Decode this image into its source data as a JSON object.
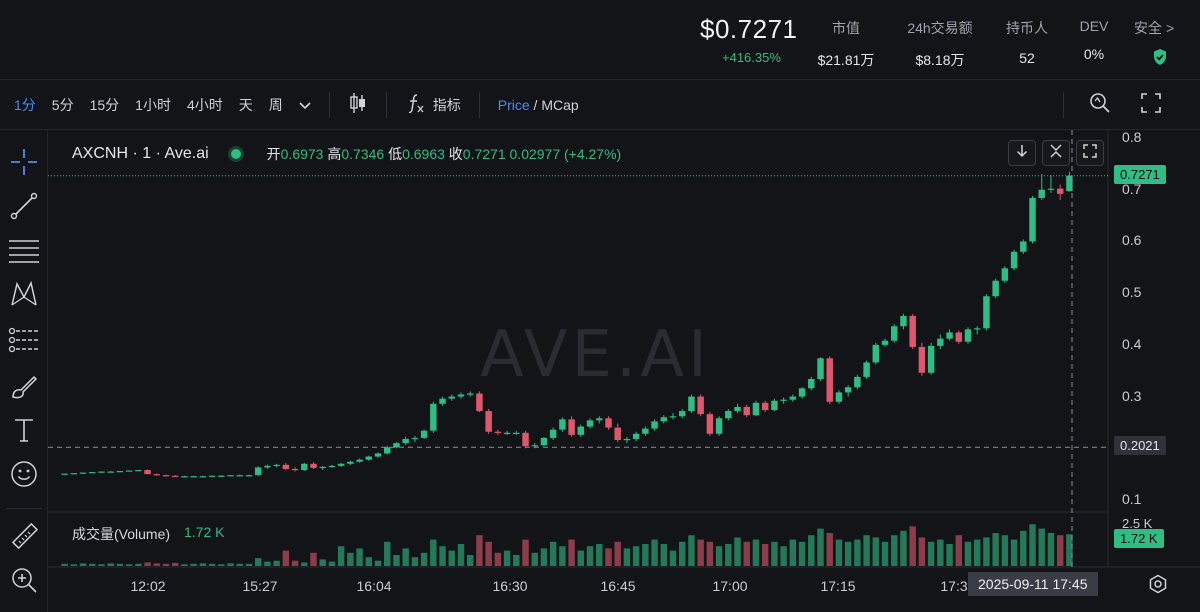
{
  "header": {
    "price": "$0.7271",
    "change": "+416.35%",
    "stats": [
      {
        "label": "市值",
        "value": "$21.81万"
      },
      {
        "label": "24h交易额",
        "value": "$8.18万"
      },
      {
        "label": "持币人",
        "value": "52"
      },
      {
        "label": "DEV",
        "value": "0%"
      }
    ],
    "safety_label": "安全",
    "safety_arrow": ">"
  },
  "toolbar": {
    "timeframes": [
      "1分",
      "5分",
      "15分",
      "1小时",
      "4小时",
      "天",
      "周"
    ],
    "indicator_label": "指标",
    "price_label": "Price",
    "mcap_label": "MCap",
    "price_mcap_sep": " / "
  },
  "legend": {
    "symbol": "AXCNH · 1 · Ave.ai",
    "open_label": "开",
    "open": "0.6973",
    "high_label": "高",
    "high": "0.7346",
    "low_label": "低",
    "low": "0.6963",
    "close_label": "收",
    "close": "0.7271",
    "change": "0.02977 (+4.27%)"
  },
  "volume_legend": {
    "label": "成交量(Volume)",
    "value": "1.72 K"
  },
  "watermark": "AVE.AI",
  "price_tags": {
    "last": "0.7271",
    "crosshair": "0.2021",
    "volume": "1.72 K",
    "vol_axis": "2.5 K"
  },
  "crosshair_time": "2025-09-11   17:45",
  "colors": {
    "up": "#2ebd85",
    "down": "#e0566c",
    "accent": "#4b8bf5",
    "bg": "#131417"
  },
  "chart_data": {
    "type": "candlestick",
    "x_ticks": [
      "12:02",
      "15:27",
      "16:04",
      "16:30",
      "16:45",
      "17:00",
      "17:15",
      "17:3"
    ],
    "y_ticks": [
      "0.8",
      "0.7",
      "0.6",
      "0.5",
      "0.4",
      "0.3",
      "0.1"
    ],
    "ylim": [
      0.1,
      0.8
    ],
    "candles": [
      [
        0.15,
        0.151,
        0.149,
        0.151
      ],
      [
        0.151,
        0.152,
        0.15,
        0.152
      ],
      [
        0.152,
        0.153,
        0.151,
        0.153
      ],
      [
        0.153,
        0.154,
        0.152,
        0.154
      ],
      [
        0.154,
        0.155,
        0.153,
        0.155
      ],
      [
        0.155,
        0.156,
        0.154,
        0.155
      ],
      [
        0.155,
        0.156,
        0.154,
        0.156
      ],
      [
        0.156,
        0.157,
        0.155,
        0.157
      ],
      [
        0.157,
        0.158,
        0.156,
        0.158
      ],
      [
        0.158,
        0.159,
        0.15,
        0.15
      ],
      [
        0.15,
        0.151,
        0.147,
        0.148
      ],
      [
        0.148,
        0.149,
        0.146,
        0.147
      ],
      [
        0.147,
        0.148,
        0.145,
        0.146
      ],
      [
        0.146,
        0.147,
        0.145,
        0.146
      ],
      [
        0.146,
        0.147,
        0.145,
        0.146
      ],
      [
        0.146,
        0.147,
        0.145,
        0.146
      ],
      [
        0.146,
        0.147,
        0.145,
        0.147
      ],
      [
        0.147,
        0.148,
        0.146,
        0.147
      ],
      [
        0.147,
        0.148,
        0.146,
        0.148
      ],
      [
        0.148,
        0.149,
        0.147,
        0.148
      ],
      [
        0.148,
        0.149,
        0.146,
        0.148
      ],
      [
        0.148,
        0.165,
        0.147,
        0.163
      ],
      [
        0.163,
        0.168,
        0.16,
        0.166
      ],
      [
        0.166,
        0.17,
        0.164,
        0.168
      ],
      [
        0.168,
        0.172,
        0.158,
        0.16
      ],
      [
        0.16,
        0.163,
        0.155,
        0.158
      ],
      [
        0.158,
        0.172,
        0.156,
        0.17
      ],
      [
        0.17,
        0.173,
        0.16,
        0.162
      ],
      [
        0.162,
        0.166,
        0.158,
        0.164
      ],
      [
        0.164,
        0.168,
        0.162,
        0.166
      ],
      [
        0.166,
        0.172,
        0.164,
        0.17
      ],
      [
        0.17,
        0.176,
        0.168,
        0.174
      ],
      [
        0.174,
        0.18,
        0.172,
        0.178
      ],
      [
        0.178,
        0.186,
        0.176,
        0.184
      ],
      [
        0.184,
        0.192,
        0.182,
        0.19
      ],
      [
        0.19,
        0.205,
        0.188,
        0.202
      ],
      [
        0.202,
        0.212,
        0.2,
        0.21
      ],
      [
        0.21,
        0.222,
        0.206,
        0.218
      ],
      [
        0.218,
        0.224,
        0.212,
        0.22
      ],
      [
        0.22,
        0.236,
        0.218,
        0.234
      ],
      [
        0.234,
        0.29,
        0.23,
        0.286
      ],
      [
        0.286,
        0.3,
        0.282,
        0.296
      ],
      [
        0.296,
        0.304,
        0.292,
        0.3
      ],
      [
        0.3,
        0.308,
        0.296,
        0.304
      ],
      [
        0.304,
        0.31,
        0.3,
        0.306
      ],
      [
        0.306,
        0.31,
        0.27,
        0.272
      ],
      [
        0.272,
        0.276,
        0.228,
        0.232
      ],
      [
        0.232,
        0.236,
        0.226,
        0.23
      ],
      [
        0.23,
        0.234,
        0.226,
        0.23
      ],
      [
        0.23,
        0.234,
        0.226,
        0.23
      ],
      [
        0.23,
        0.234,
        0.2,
        0.204
      ],
      [
        0.204,
        0.21,
        0.2,
        0.206
      ],
      [
        0.206,
        0.222,
        0.204,
        0.22
      ],
      [
        0.22,
        0.24,
        0.216,
        0.236
      ],
      [
        0.236,
        0.26,
        0.232,
        0.256
      ],
      [
        0.256,
        0.262,
        0.222,
        0.226
      ],
      [
        0.226,
        0.246,
        0.222,
        0.242
      ],
      [
        0.242,
        0.258,
        0.238,
        0.254
      ],
      [
        0.254,
        0.262,
        0.248,
        0.258
      ],
      [
        0.258,
        0.262,
        0.236,
        0.24
      ],
      [
        0.24,
        0.248,
        0.212,
        0.216
      ],
      [
        0.216,
        0.222,
        0.21,
        0.218
      ],
      [
        0.218,
        0.232,
        0.214,
        0.228
      ],
      [
        0.228,
        0.242,
        0.224,
        0.238
      ],
      [
        0.238,
        0.256,
        0.234,
        0.252
      ],
      [
        0.252,
        0.264,
        0.248,
        0.26
      ],
      [
        0.26,
        0.268,
        0.256,
        0.262
      ],
      [
        0.262,
        0.276,
        0.258,
        0.272
      ],
      [
        0.272,
        0.304,
        0.268,
        0.3
      ],
      [
        0.3,
        0.304,
        0.262,
        0.266
      ],
      [
        0.266,
        0.27,
        0.224,
        0.228
      ],
      [
        0.228,
        0.262,
        0.224,
        0.258
      ],
      [
        0.258,
        0.276,
        0.254,
        0.272
      ],
      [
        0.272,
        0.286,
        0.268,
        0.28
      ],
      [
        0.28,
        0.284,
        0.26,
        0.264
      ],
      [
        0.264,
        0.292,
        0.262,
        0.288
      ],
      [
        0.288,
        0.292,
        0.27,
        0.274
      ],
      [
        0.274,
        0.296,
        0.272,
        0.292
      ],
      [
        0.292,
        0.298,
        0.286,
        0.294
      ],
      [
        0.294,
        0.304,
        0.29,
        0.3
      ],
      [
        0.3,
        0.318,
        0.296,
        0.316
      ],
      [
        0.316,
        0.338,
        0.312,
        0.334
      ],
      [
        0.334,
        0.376,
        0.33,
        0.374
      ],
      [
        0.374,
        0.378,
        0.286,
        0.29
      ],
      [
        0.29,
        0.312,
        0.286,
        0.308
      ],
      [
        0.308,
        0.322,
        0.3,
        0.318
      ],
      [
        0.318,
        0.342,
        0.314,
        0.338
      ],
      [
        0.338,
        0.37,
        0.334,
        0.366
      ],
      [
        0.366,
        0.404,
        0.362,
        0.4
      ],
      [
        0.4,
        0.412,
        0.396,
        0.408
      ],
      [
        0.408,
        0.44,
        0.404,
        0.436
      ],
      [
        0.436,
        0.46,
        0.43,
        0.456
      ],
      [
        0.456,
        0.46,
        0.392,
        0.396
      ],
      [
        0.396,
        0.404,
        0.34,
        0.346
      ],
      [
        0.346,
        0.404,
        0.342,
        0.398
      ],
      [
        0.398,
        0.42,
        0.392,
        0.412
      ],
      [
        0.412,
        0.43,
        0.408,
        0.424
      ],
      [
        0.424,
        0.428,
        0.402,
        0.406
      ],
      [
        0.406,
        0.434,
        0.402,
        0.43
      ],
      [
        0.43,
        0.436,
        0.42,
        0.432
      ],
      [
        0.432,
        0.498,
        0.428,
        0.494
      ],
      [
        0.494,
        0.528,
        0.49,
        0.524
      ],
      [
        0.524,
        0.552,
        0.52,
        0.548
      ],
      [
        0.548,
        0.584,
        0.544,
        0.58
      ],
      [
        0.58,
        0.604,
        0.576,
        0.6
      ],
      [
        0.6,
        0.688,
        0.596,
        0.684
      ],
      [
        0.684,
        0.73,
        0.68,
        0.7
      ],
      [
        0.7,
        0.728,
        0.694,
        0.702
      ],
      [
        0.702,
        0.71,
        0.68,
        0.692
      ],
      [
        0.6973,
        0.7346,
        0.6963,
        0.7271
      ]
    ],
    "volumes": [
      0.05,
      0.04,
      0.06,
      0.05,
      0.04,
      0.06,
      0.05,
      0.04,
      0.05,
      0.08,
      0.06,
      0.05,
      0.07,
      0.04,
      0.05,
      0.06,
      0.05,
      0.04,
      0.06,
      0.05,
      0.05,
      0.18,
      0.1,
      0.12,
      0.35,
      0.12,
      0.08,
      0.3,
      0.15,
      0.1,
      0.45,
      0.3,
      0.4,
      0.2,
      0.12,
      0.55,
      0.25,
      0.4,
      0.2,
      0.3,
      0.6,
      0.45,
      0.35,
      0.5,
      0.25,
      0.7,
      0.55,
      0.3,
      0.35,
      0.25,
      0.6,
      0.3,
      0.4,
      0.55,
      0.45,
      0.6,
      0.35,
      0.45,
      0.5,
      0.4,
      0.55,
      0.4,
      0.45,
      0.5,
      0.6,
      0.5,
      0.35,
      0.55,
      0.7,
      0.6,
      0.55,
      0.45,
      0.5,
      0.65,
      0.55,
      0.6,
      0.5,
      0.55,
      0.45,
      0.6,
      0.55,
      0.7,
      0.85,
      0.75,
      0.6,
      0.55,
      0.6,
      0.7,
      0.65,
      0.55,
      0.7,
      0.8,
      0.9,
      0.65,
      0.55,
      0.6,
      0.5,
      0.7,
      0.55,
      0.6,
      0.65,
      0.75,
      0.7,
      0.6,
      0.8,
      0.95,
      0.85,
      0.75,
      0.7,
      0.72
    ],
    "last_price": 0.7271,
    "crosshair_price": 0.2021
  }
}
